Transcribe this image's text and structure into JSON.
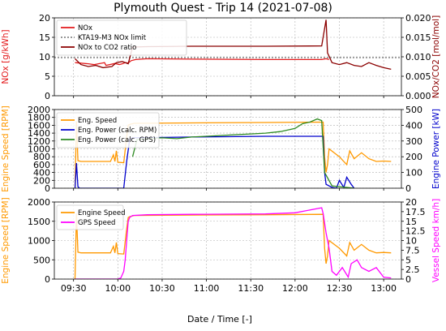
{
  "chart_data": {
    "title": "Plymouth Quest - Trip 14 (2021-07-08)",
    "xlabel": "Date / Time [-]",
    "x_ticks": [
      "09:30",
      "10:00",
      "10:30",
      "11:00",
      "11:30",
      "12:00",
      "12:30",
      "13:00"
    ],
    "x_tick_minutes": [
      570,
      600,
      630,
      660,
      690,
      720,
      750,
      780
    ],
    "x_range_minutes": [
      557,
      792
    ],
    "panels": [
      {
        "type": "line",
        "ylabel_left": "NOx [g/kWh]",
        "ylabel_right": "NOx/CO2 [mol/mol]",
        "ylim_left": [
          0,
          20
        ],
        "ylim_right": [
          0,
          0.02
        ],
        "yticks_left": [
          "0",
          "5",
          "10",
          "15",
          "20"
        ],
        "yticks_right": [
          "0.000",
          "0.005",
          "0.010",
          "0.015",
          "0.020"
        ],
        "legend_position": "top-left",
        "series": [
          {
            "name": "NOx",
            "axis": "left",
            "color": "#e31a1c",
            "x": [
              571,
              580,
              584,
              591,
              592,
              598,
              601,
              603,
              605,
              607,
              609,
              612,
              620,
              650,
              700,
              738,
              741,
              743
            ],
            "y": [
              8.5,
              8.2,
              8.0,
              8.5,
              7.8,
              8.3,
              8.0,
              8.2,
              8.5,
              8.4,
              9.0,
              9.3,
              9.5,
              9.4,
              9.3,
              9.3,
              9.5,
              9.3
            ]
          },
          {
            "name": "KTA19-M3 NOx limit",
            "axis": "left",
            "color": "#888888",
            "x": [
              557,
              792
            ],
            "y": [
              9.8,
              9.8
            ]
          },
          {
            "name": "NOx to CO2 ratio",
            "axis": "right",
            "color": "#8b0000",
            "x": [
              571,
              575,
              580,
              585,
              590,
              596,
              599,
              603,
              607,
              610,
              620,
              650,
              700,
              738,
              741,
              742,
              745,
              750,
              755,
              760,
              765,
              770,
              775,
              780,
              785
            ],
            "y": [
              0.0095,
              0.008,
              0.0075,
              0.0078,
              0.0072,
              0.0075,
              0.0085,
              0.0088,
              0.0082,
              0.0125,
              0.0126,
              0.0127,
              0.0127,
              0.0128,
              0.0195,
              0.011,
              0.0085,
              0.008,
              0.0085,
              0.0078,
              0.0075,
              0.0085,
              0.0078,
              0.0072,
              0.0068
            ]
          }
        ]
      },
      {
        "type": "line",
        "ylabel_left": "Engine Speed [RPM]",
        "ylabel_right": "Engine Power [kW]",
        "ylim_left": [
          0,
          2000
        ],
        "ylim_right": [
          0,
          500
        ],
        "yticks_left": [
          "0",
          "200",
          "400",
          "600",
          "800",
          "1000",
          "1200",
          "1400",
          "1600",
          "1800",
          "2000"
        ],
        "yticks_right": [
          "0",
          "100",
          "200",
          "300",
          "400",
          "500"
        ],
        "legend_position": "top-left",
        "series": [
          {
            "name": "Eng. Speed",
            "axis": "left",
            "color": "#ff9900",
            "x": [
              571,
              572,
              573,
              574,
              575,
              590,
              595,
              597,
              598,
              599,
              600,
              604,
              606,
              607,
              608,
              609,
              610,
              611,
              650,
              700,
              739,
              740,
              741,
              742,
              743,
              750,
              755,
              757,
              760,
              765,
              770,
              775,
              780,
              785
            ],
            "y": [
              0,
              1700,
              700,
              690,
              680,
              680,
              680,
              850,
              680,
              950,
              660,
              650,
              1300,
              1600,
              1620,
              1630,
              1640,
              1650,
              1660,
              1670,
              1680,
              800,
              400,
              600,
              1000,
              800,
              600,
              950,
              750,
              900,
              750,
              680,
              690,
              680
            ]
          },
          {
            "name": "Eng. Power (calc. RPM)",
            "axis": "right",
            "color": "#0000cc",
            "x": [
              571,
              572,
              573,
              574,
              600,
              604,
              606,
              608,
              610,
              650,
              700,
              739,
              740,
              741,
              745,
              748,
              750,
              753,
              755,
              758,
              760
            ],
            "y": [
              0,
              160,
              10,
              0,
              0,
              0,
              170,
              310,
              320,
              325,
              330,
              330,
              100,
              25,
              5,
              0,
              50,
              5,
              70,
              25,
              0
            ]
          },
          {
            "name": "Eng. Power (calc. GPS)",
            "axis": "right",
            "color": "#2e8b22",
            "x": [
              610,
              613,
              620,
              630,
              640,
              650,
              660,
              670,
              680,
              690,
              700,
              710,
              720,
              725,
              730,
              735,
              738,
              740,
              745,
              750,
              755,
              760
            ],
            "y": [
              200,
              310,
              315,
              320,
              315,
              325,
              330,
              335,
              340,
              345,
              350,
              360,
              380,
              410,
              420,
              440,
              430,
              100,
              15,
              10,
              5,
              0
            ]
          }
        ]
      },
      {
        "type": "line",
        "ylabel_left": "Engine Speed [RPM]",
        "ylabel_right": "Vessel Speed km/h]",
        "ylim_left": [
          0,
          2000
        ],
        "ylim_right": [
          0,
          20
        ],
        "yticks_left": [
          "0",
          "500",
          "1000",
          "1500",
          "2000"
        ],
        "yticks_right": [
          "0",
          "2.5",
          "5",
          "7.5",
          "10",
          "12.5",
          "15",
          "17.5",
          "20"
        ],
        "legend_position": "top-left",
        "series": [
          {
            "name": "Engine Speed",
            "axis": "left",
            "color": "#ff9900",
            "x": [
              571,
              572,
              573,
              574,
              575,
              590,
              595,
              597,
              598,
              599,
              600,
              604,
              606,
              607,
              608,
              609,
              610,
              611,
              650,
              700,
              739,
              740,
              741,
              742,
              743,
              750,
              755,
              757,
              760,
              765,
              770,
              775,
              780,
              785
            ],
            "y": [
              0,
              1700,
              700,
              690,
              680,
              680,
              680,
              850,
              680,
              950,
              660,
              650,
              1300,
              1600,
              1620,
              1630,
              1640,
              1650,
              1660,
              1670,
              1680,
              800,
              400,
              600,
              1000,
              800,
              600,
              950,
              750,
              900,
              750,
              680,
              690,
              680
            ]
          },
          {
            "name": "GPS Speed",
            "axis": "right",
            "color": "#ff00ff",
            "x": [
              571,
              580,
              600,
              602,
              604,
              605,
              606,
              607,
              608,
              610,
              620,
              650,
              700,
              720,
              735,
              738,
              739,
              741,
              743,
              745,
              748,
              752,
              756,
              758,
              762,
              765,
              770,
              775,
              780,
              785
            ],
            "y": [
              0,
              0,
              0,
              0.3,
              2,
              5,
              10,
              15,
              16,
              16.5,
              16.7,
              16.8,
              16.9,
              17.2,
              18.3,
              18.5,
              17,
              12,
              8,
              2,
              1,
              3,
              0.5,
              4,
              5,
              3,
              2,
              3,
              0.5,
              0.3
            ]
          }
        ]
      }
    ]
  }
}
